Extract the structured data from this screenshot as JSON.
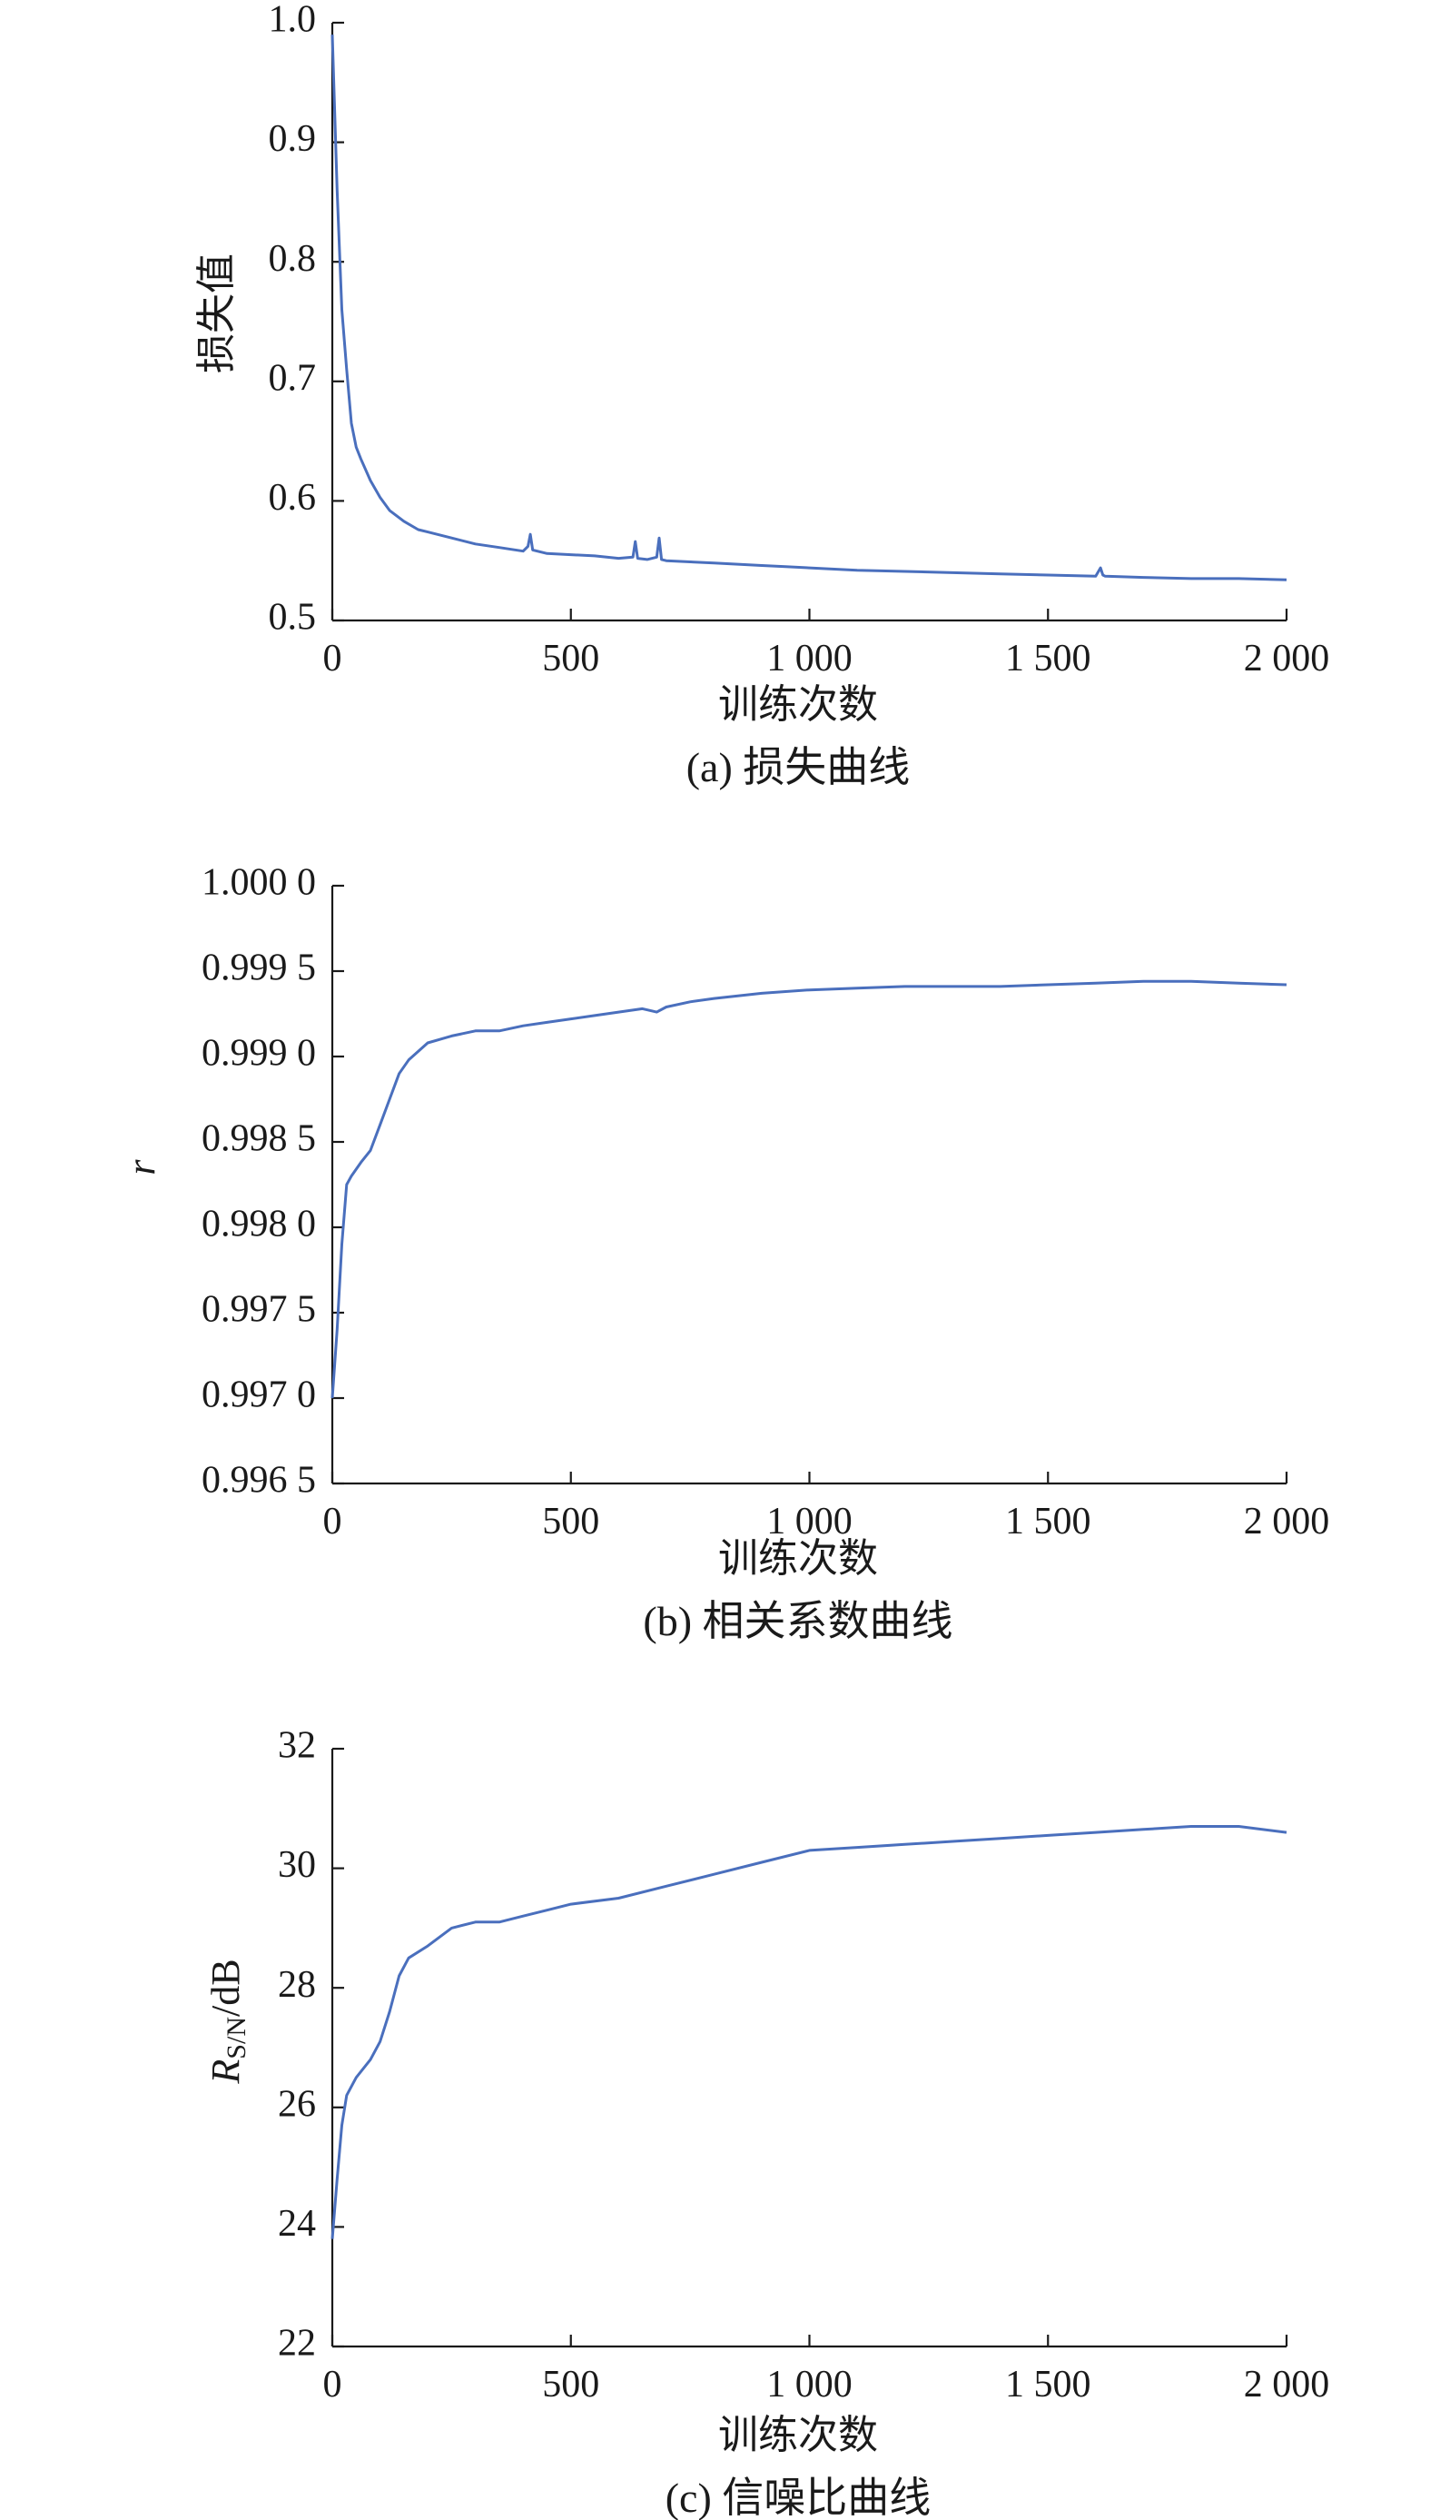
{
  "chart_data": [
    {
      "type": "line",
      "caption": "(a) 损失曲线",
      "xlabel": "训练次数",
      "ylabel": "损失值",
      "xlim": [
        0,
        2000
      ],
      "ylim": [
        0.5,
        1.0
      ],
      "xticks": [
        0,
        500,
        1000,
        1500,
        2000
      ],
      "xtick_labels": [
        "0",
        "500",
        "1 000",
        "1 500",
        "2 000"
      ],
      "yticks": [
        0.5,
        0.6,
        0.7,
        0.8,
        0.9,
        1.0
      ],
      "ytick_labels": [
        "0.5",
        "0.6",
        "0.7",
        "0.8",
        "0.9",
        "1.0"
      ],
      "series_color": "#4a6fbd",
      "x": [
        0,
        10,
        20,
        30,
        40,
        50,
        60,
        80,
        100,
        120,
        150,
        180,
        200,
        250,
        300,
        350,
        400,
        410,
        415,
        420,
        450,
        500,
        550,
        600,
        630,
        635,
        640,
        660,
        680,
        685,
        690,
        700,
        750,
        800,
        850,
        900,
        950,
        1000,
        1100,
        1200,
        1300,
        1400,
        1500,
        1600,
        1610,
        1615,
        1620,
        1700,
        1800,
        1900,
        2000
      ],
      "y": [
        0.99,
        0.86,
        0.76,
        0.71,
        0.665,
        0.645,
        0.635,
        0.617,
        0.603,
        0.592,
        0.583,
        0.576,
        0.574,
        0.569,
        0.564,
        0.561,
        0.558,
        0.562,
        0.572,
        0.559,
        0.556,
        0.555,
        0.554,
        0.552,
        0.553,
        0.566,
        0.552,
        0.551,
        0.553,
        0.569,
        0.551,
        0.55,
        0.549,
        0.548,
        0.547,
        0.546,
        0.545,
        0.544,
        0.542,
        0.541,
        0.54,
        0.539,
        0.538,
        0.537,
        0.544,
        0.538,
        0.537,
        0.536,
        0.535,
        0.535,
        0.534
      ]
    },
    {
      "type": "line",
      "caption": "(b) 相关系数曲线",
      "xlabel": "训练次数",
      "ylabel": "r",
      "xlim": [
        0,
        2000
      ],
      "ylim": [
        0.9965,
        1.0
      ],
      "xticks": [
        0,
        500,
        1000,
        1500,
        2000
      ],
      "xtick_labels": [
        "0",
        "500",
        "1 000",
        "1 500",
        "2 000"
      ],
      "yticks": [
        0.9965,
        0.997,
        0.9975,
        0.998,
        0.9985,
        0.999,
        0.9995,
        1.0
      ],
      "ytick_labels": [
        "0.996 5",
        "0.997 0",
        "0.997 5",
        "0.998 0",
        "0.998 5",
        "0.999 0",
        "0.999 5",
        "1.000 0"
      ],
      "series_color": "#4a6fbd",
      "x": [
        0,
        10,
        20,
        30,
        40,
        60,
        80,
        100,
        120,
        140,
        160,
        180,
        200,
        250,
        300,
        350,
        400,
        450,
        500,
        550,
        600,
        650,
        680,
        700,
        750,
        800,
        900,
        1000,
        1100,
        1200,
        1300,
        1400,
        1500,
        1600,
        1700,
        1800,
        1900,
        2000
      ],
      "y": [
        0.997,
        0.9974,
        0.9979,
        0.99825,
        0.9983,
        0.99838,
        0.99845,
        0.9986,
        0.99875,
        0.9989,
        0.99898,
        0.99903,
        0.99908,
        0.99912,
        0.99915,
        0.99915,
        0.99918,
        0.9992,
        0.99922,
        0.99924,
        0.99926,
        0.99928,
        0.99926,
        0.99929,
        0.99932,
        0.99934,
        0.99937,
        0.99939,
        0.9994,
        0.99941,
        0.99941,
        0.99941,
        0.99942,
        0.99943,
        0.99944,
        0.99944,
        0.99943,
        0.99942
      ]
    },
    {
      "type": "line",
      "caption": "(c) 信噪比曲线",
      "xlabel": "训练次数",
      "ylabel": "R_S/N/dB",
      "ylabel_main": "R",
      "ylabel_sub": "S/N",
      "ylabel_unit": "/dB",
      "xlim": [
        0,
        2000
      ],
      "ylim": [
        22,
        32
      ],
      "xticks": [
        0,
        500,
        1000,
        1500,
        2000
      ],
      "xtick_labels": [
        "0",
        "500",
        "1 000",
        "1 500",
        "2 000"
      ],
      "yticks": [
        22,
        24,
        26,
        28,
        30,
        32
      ],
      "ytick_labels": [
        "22",
        "24",
        "26",
        "28",
        "30",
        "32"
      ],
      "series_color": "#4a6fbd",
      "x": [
        0,
        10,
        20,
        30,
        50,
        80,
        100,
        120,
        140,
        160,
        200,
        250,
        300,
        350,
        400,
        450,
        500,
        600,
        700,
        800,
        900,
        1000,
        1100,
        1200,
        1300,
        1400,
        1500,
        1600,
        1700,
        1800,
        1900,
        2000
      ],
      "y": [
        23.8,
        24.8,
        25.7,
        26.2,
        26.5,
        26.8,
        27.1,
        27.6,
        28.2,
        28.5,
        28.7,
        29.0,
        29.1,
        29.1,
        29.2,
        29.3,
        29.4,
        29.5,
        29.7,
        29.9,
        30.1,
        30.3,
        30.35,
        30.4,
        30.45,
        30.5,
        30.55,
        30.6,
        30.65,
        30.7,
        30.7,
        30.6
      ]
    }
  ]
}
